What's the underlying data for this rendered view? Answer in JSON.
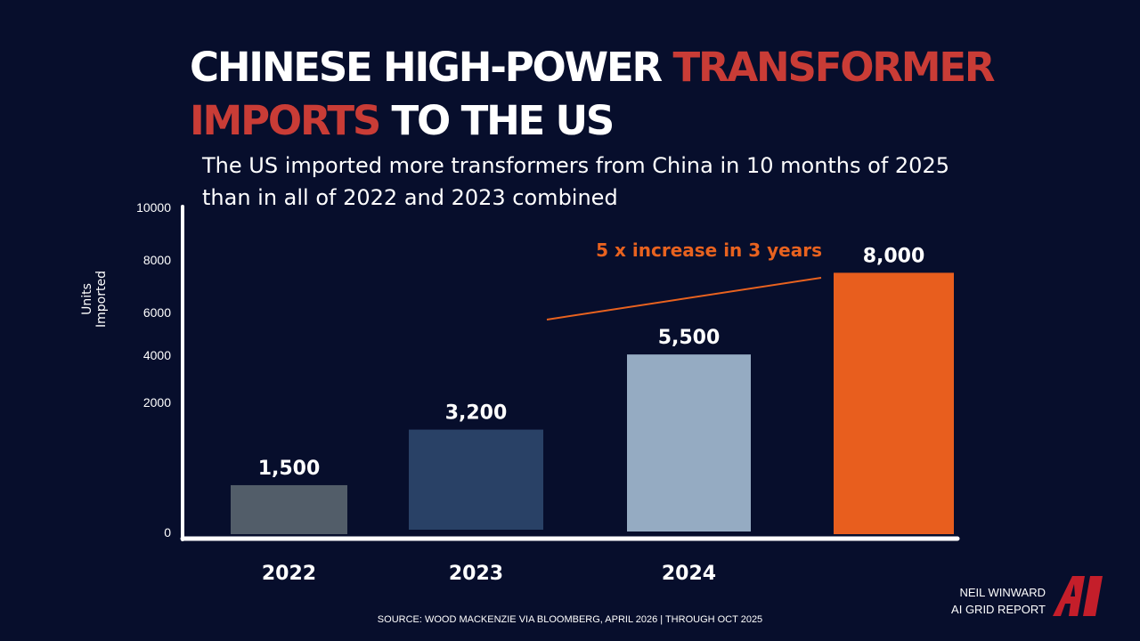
{
  "title": {
    "part1": "CHINESE HIGH-POWER ",
    "part2": "TRANSFORMER",
    "part3": "IMPORTS",
    "part4": " TO THE US"
  },
  "subtitle_line1": "The US imported more transformers from China in 10 months of 2025",
  "subtitle_line2": "than in all of 2022 and 2023 combined",
  "footer": {
    "source": "SOURCE: WOOD MACKENZIE VIA BLOOMBERG, APRIL 2026 | THROUGH OCT 2025",
    "author_line1": "NEIL WINWARD",
    "author_line2": "AI GRID REPORT",
    "logo_text": "AI"
  },
  "colors": {
    "background": "#070e2c",
    "title_accent": "#c93c36",
    "annotation": "#e8621f",
    "axis": "#ffffff"
  },
  "chart_data": {
    "type": "bar",
    "ylabel": "Units Imported",
    "xlabel": "",
    "ylim": [
      0,
      10000
    ],
    "yticks": [
      "0",
      "2000",
      "4000",
      "6000",
      "8000",
      "10000"
    ],
    "categories": [
      "2022",
      "2023",
      "2024",
      ""
    ],
    "values": [
      1500,
      3200,
      5500,
      8000
    ],
    "data_labels": [
      "1,500",
      "3,200",
      "5,500",
      "8,000"
    ],
    "bar_colors": [
      "#525d69",
      "#294166",
      "#95abc2",
      "#e85e1e"
    ],
    "annotation": "5 x increase in 3 years",
    "grid": false,
    "legend": "none"
  }
}
